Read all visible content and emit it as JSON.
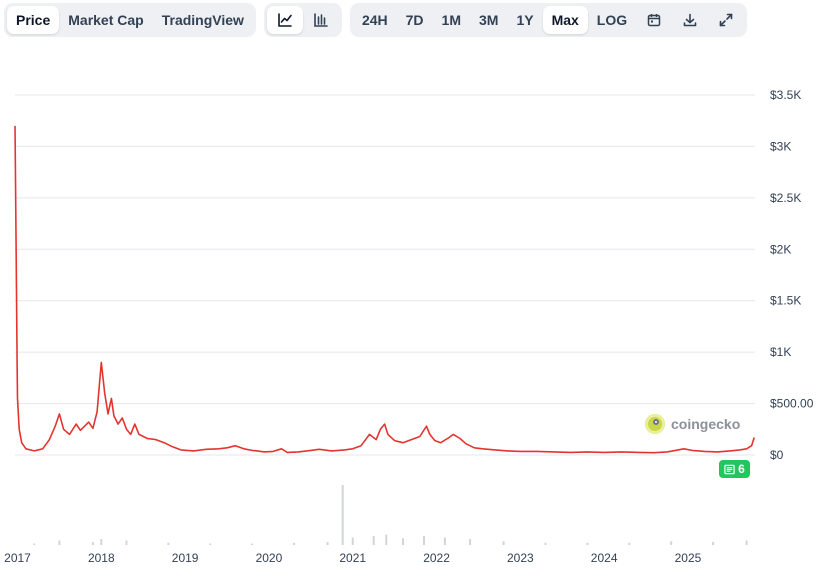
{
  "toolbar": {
    "data_tabs": [
      {
        "label": "Price",
        "active": true
      },
      {
        "label": "Market Cap",
        "active": false
      },
      {
        "label": "TradingView",
        "active": false
      }
    ],
    "chart_types": [
      {
        "icon": "line-chart-icon",
        "active": true
      },
      {
        "icon": "candlestick-chart-icon",
        "active": false
      }
    ],
    "ranges": [
      {
        "label": "24H",
        "active": false
      },
      {
        "label": "7D",
        "active": false
      },
      {
        "label": "1M",
        "active": false
      },
      {
        "label": "3M",
        "active": false
      },
      {
        "label": "1Y",
        "active": false
      },
      {
        "label": "Max",
        "active": true
      },
      {
        "label": "LOG",
        "active": false
      }
    ],
    "actions": [
      {
        "icon": "calendar-icon"
      },
      {
        "icon": "download-icon"
      },
      {
        "icon": "fullscreen-icon"
      }
    ]
  },
  "watermark": {
    "text": "coingecko"
  },
  "news_badge": {
    "count": "6"
  },
  "colors": {
    "line": "#e3342f",
    "badge": "#22c55e",
    "active_bg": "#ffffff",
    "toolbar_bg": "#eef0f3"
  },
  "chart_data": {
    "type": "line",
    "ylim": [
      0,
      3500
    ],
    "y_ticks": [
      {
        "value": 0,
        "label": "$0"
      },
      {
        "value": 500,
        "label": "$500.00"
      },
      {
        "value": 1000,
        "label": "$1K"
      },
      {
        "value": 1500,
        "label": "$1.5K"
      },
      {
        "value": 2000,
        "label": "$2K"
      },
      {
        "value": 2500,
        "label": "$2.5K"
      },
      {
        "value": 3000,
        "label": "$3K"
      },
      {
        "value": 3500,
        "label": "$3.5K"
      }
    ],
    "x_ticks": [
      "2017",
      "2018",
      "2019",
      "2020",
      "2021",
      "2022",
      "2023",
      "2024",
      "2025"
    ],
    "xlim": [
      2016.97,
      2025.8
    ],
    "grid": true,
    "series": [
      {
        "points": [
          [
            2016.97,
            3200
          ],
          [
            2016.975,
            2800
          ],
          [
            2016.985,
            1800
          ],
          [
            2016.995,
            900
          ],
          [
            2017.0,
            550
          ],
          [
            2017.02,
            250
          ],
          [
            2017.05,
            120
          ],
          [
            2017.1,
            60
          ],
          [
            2017.2,
            40
          ],
          [
            2017.3,
            60
          ],
          [
            2017.38,
            150
          ],
          [
            2017.45,
            280
          ],
          [
            2017.5,
            400
          ],
          [
            2017.55,
            250
          ],
          [
            2017.62,
            200
          ],
          [
            2017.7,
            300
          ],
          [
            2017.75,
            240
          ],
          [
            2017.8,
            280
          ],
          [
            2017.85,
            320
          ],
          [
            2017.9,
            260
          ],
          [
            2017.95,
            420
          ],
          [
            2018.0,
            900
          ],
          [
            2018.04,
            600
          ],
          [
            2018.08,
            400
          ],
          [
            2018.12,
            550
          ],
          [
            2018.15,
            380
          ],
          [
            2018.2,
            300
          ],
          [
            2018.25,
            360
          ],
          [
            2018.3,
            250
          ],
          [
            2018.35,
            200
          ],
          [
            2018.4,
            300
          ],
          [
            2018.45,
            200
          ],
          [
            2018.55,
            160
          ],
          [
            2018.65,
            150
          ],
          [
            2018.75,
            120
          ],
          [
            2018.85,
            80
          ],
          [
            2018.95,
            50
          ],
          [
            2019.1,
            40
          ],
          [
            2019.25,
            55
          ],
          [
            2019.4,
            60
          ],
          [
            2019.5,
            70
          ],
          [
            2019.6,
            90
          ],
          [
            2019.7,
            60
          ],
          [
            2019.8,
            45
          ],
          [
            2019.95,
            30
          ],
          [
            2020.05,
            35
          ],
          [
            2020.15,
            60
          ],
          [
            2020.22,
            25
          ],
          [
            2020.35,
            30
          ],
          [
            2020.5,
            45
          ],
          [
            2020.6,
            55
          ],
          [
            2020.75,
            40
          ],
          [
            2020.9,
            50
          ],
          [
            2021.0,
            60
          ],
          [
            2021.1,
            90
          ],
          [
            2021.2,
            200
          ],
          [
            2021.28,
            150
          ],
          [
            2021.33,
            250
          ],
          [
            2021.38,
            300
          ],
          [
            2021.42,
            200
          ],
          [
            2021.5,
            140
          ],
          [
            2021.6,
            120
          ],
          [
            2021.7,
            150
          ],
          [
            2021.8,
            180
          ],
          [
            2021.88,
            280
          ],
          [
            2021.92,
            200
          ],
          [
            2021.98,
            140
          ],
          [
            2022.05,
            120
          ],
          [
            2022.15,
            170
          ],
          [
            2022.2,
            200
          ],
          [
            2022.28,
            160
          ],
          [
            2022.35,
            110
          ],
          [
            2022.45,
            70
          ],
          [
            2022.55,
            60
          ],
          [
            2022.7,
            50
          ],
          [
            2022.85,
            40
          ],
          [
            2023.0,
            35
          ],
          [
            2023.2,
            35
          ],
          [
            2023.4,
            30
          ],
          [
            2023.6,
            25
          ],
          [
            2023.8,
            30
          ],
          [
            2024.0,
            25
          ],
          [
            2024.2,
            30
          ],
          [
            2024.4,
            25
          ],
          [
            2024.6,
            22
          ],
          [
            2024.75,
            30
          ],
          [
            2024.85,
            45
          ],
          [
            2024.95,
            60
          ],
          [
            2025.05,
            45
          ],
          [
            2025.2,
            35
          ],
          [
            2025.35,
            30
          ],
          [
            2025.5,
            40
          ],
          [
            2025.62,
            50
          ],
          [
            2025.7,
            60
          ],
          [
            2025.76,
            90
          ],
          [
            2025.79,
            170
          ]
        ]
      }
    ],
    "volume": [
      [
        2017.2,
        2
      ],
      [
        2017.5,
        6
      ],
      [
        2017.9,
        4
      ],
      [
        2018.0,
        8
      ],
      [
        2018.3,
        6
      ],
      [
        2018.8,
        3
      ],
      [
        2019.3,
        2
      ],
      [
        2019.8,
        2
      ],
      [
        2020.3,
        3
      ],
      [
        2020.7,
        4
      ],
      [
        2020.88,
        80
      ],
      [
        2021.0,
        10
      ],
      [
        2021.25,
        12
      ],
      [
        2021.4,
        14
      ],
      [
        2021.6,
        9
      ],
      [
        2021.85,
        12
      ],
      [
        2022.1,
        10
      ],
      [
        2022.4,
        8
      ],
      [
        2022.8,
        5
      ],
      [
        2023.3,
        3
      ],
      [
        2023.8,
        3
      ],
      [
        2024.3,
        3
      ],
      [
        2024.8,
        5
      ],
      [
        2025.3,
        4
      ],
      [
        2025.7,
        6
      ]
    ]
  }
}
